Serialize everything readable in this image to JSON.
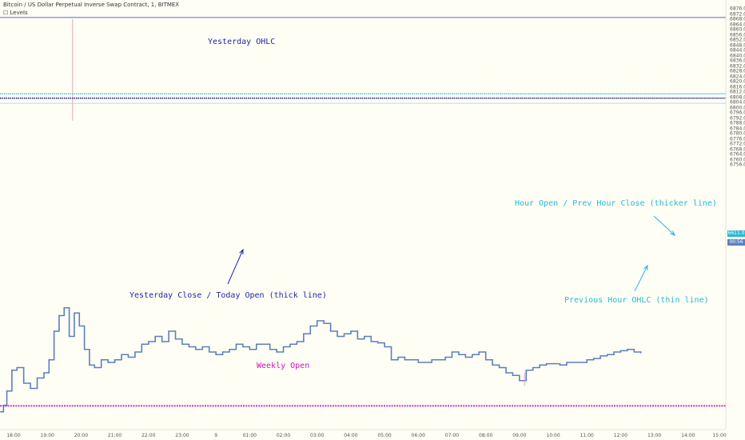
{
  "header": {
    "title": "Bitcoin / US Dollar Perpetual Inverse Swap Contract, 1, BITMEX",
    "indicator": "Levels"
  },
  "colors": {
    "background": "#fffef5",
    "candle": "#5b7fc0",
    "wick": "#d890a6",
    "yesterday_ohlc": "#3636a8",
    "today_open": "#1c1c9c",
    "hour_open": "#2cb8d0",
    "prev_hour": "#8fd6e6",
    "weekly_open": "#d400c8",
    "hour_label": "#25b8d6",
    "yesterday_label": "#2424aa",
    "weekly_label": "#d010c8"
  },
  "annotations": {
    "yesterday_ohlc": "Yesterday OHLC",
    "yesterday_close": "Yesterday Close / Today Open (thick line)",
    "hour_open": "Hour Open / Prev Hour Close (thicker line)",
    "prev_hour": "Previous Hour OHLC (thin line)",
    "weekly_open": "Weekly Open"
  },
  "price_labels": {
    "last": "6611.0",
    "timer": "00:56"
  },
  "chart_data": {
    "type": "line",
    "title": "Bitcoin / US Dollar Perpetual Inverse Swap Contract, 1, BITMEX",
    "ylim": [
      6554,
      6878
    ],
    "yticks": [
      "6876.0",
      "6872.0",
      "6868.0",
      "6864.0",
      "6860.0",
      "6856.0",
      "6852.0",
      "6848.0",
      "6844.0",
      "6840.0",
      "6836.0",
      "6832.0",
      "6828.0",
      "6824.0",
      "6820.0",
      "6816.0",
      "6812.0",
      "6808.0",
      "6804.0",
      "6800.0",
      "6796.0",
      "6792.0",
      "6788.0",
      "6784.0",
      "6780.0",
      "6776.0",
      "6772.0",
      "6768.0",
      "6764.0",
      "6760.0",
      "6756.0"
    ],
    "ytick_values": [
      6876,
      6872,
      6868,
      6864,
      6860,
      6856,
      6852,
      6848,
      6844,
      6840,
      6836,
      6832,
      6828,
      6824,
      6820,
      6816,
      6812,
      6808,
      6804,
      6800,
      6796,
      6792,
      6788,
      6784,
      6780,
      6776,
      6772,
      6768,
      6764,
      6760,
      6756
    ],
    "xlim": [
      17.6,
      15.15
    ],
    "xticks": [
      "18:00",
      "19:00",
      "20:00",
      "21:00",
      "22:00",
      "23:00",
      "9",
      "01:00",
      "02:00",
      "03:00",
      "04:00",
      "05:00",
      "06:00",
      "07:00",
      "08:00",
      "09:00",
      "10:00",
      "11:00",
      "12:00",
      "13:00",
      "14:00",
      "15:00"
    ],
    "xtick_hours": [
      18,
      19,
      20,
      21,
      22,
      23,
      24,
      25,
      26,
      27,
      28,
      29,
      30,
      31,
      32,
      33,
      34,
      35,
      36,
      37,
      38,
      39
    ],
    "levels": [
      {
        "label": "Yesterday OHLC",
        "price": 6869.3
      },
      {
        "label": "Hour Open / Prev Hour Close (thicker line)",
        "price": 6810.6
      },
      {
        "label": "Yesterday Close / Today Open (thick line)",
        "price": 6807.3
      },
      {
        "label": "Previous Hour OHLC (thin line)",
        "price": 6803.3
      },
      {
        "label": "Weekly Open",
        "price": 6570.6
      }
    ],
    "series": [
      {
        "x": [
          17.6,
          17.7,
          17.8,
          17.95,
          18.1,
          18.3,
          18.5,
          18.7,
          18.9,
          19.05,
          19.2,
          19.35,
          19.5,
          19.65,
          19.8,
          19.95,
          20.1,
          20.25,
          20.4,
          20.6,
          20.8,
          21.0,
          21.2,
          21.4,
          21.6,
          21.8,
          22.0,
          22.2,
          22.4,
          22.6,
          22.8,
          23.0,
          23.2,
          23.4,
          23.6,
          23.8,
          24.0,
          24.2,
          24.4,
          24.6,
          24.8,
          25.0,
          25.2,
          25.4,
          25.6,
          25.8,
          26.0,
          26.2,
          26.4,
          26.6,
          26.8,
          27.0,
          27.2,
          27.4,
          27.6,
          27.8,
          28.0,
          28.2,
          28.4,
          28.6,
          28.8,
          29.0,
          29.2,
          29.4,
          29.6,
          29.8,
          30.0,
          30.2,
          30.4,
          30.6,
          30.8,
          31.0,
          31.2,
          31.4,
          31.6,
          31.8,
          32.0,
          32.2,
          32.4,
          32.6,
          32.8,
          33.0,
          33.2,
          33.4,
          33.6,
          33.8,
          34.0,
          34.2,
          34.4,
          34.6,
          34.8,
          35.0,
          35.2,
          35.4,
          35.6,
          35.8,
          36.0,
          36.2,
          36.4,
          36.6
        ],
        "y": [
          6566,
          6571,
          6582,
          6598,
          6600,
          6588,
          6584,
          6592,
          6596,
          6606,
          6628,
          6640,
          6646,
          6624,
          6642,
          6632,
          6614,
          6602,
          6600,
          6606,
          6604,
          6606,
          6610,
          6608,
          6612,
          6618,
          6620,
          6624,
          6620,
          6628,
          6622,
          6618,
          6616,
          6614,
          6616,
          6612,
          6610,
          6612,
          6614,
          6618,
          6616,
          6614,
          6618,
          6618,
          6614,
          6612,
          6616,
          6618,
          6620,
          6626,
          6632,
          6636,
          6634,
          6628,
          6624,
          6626,
          6628,
          6622,
          6624,
          6620,
          6619,
          6616,
          6606,
          6608,
          6606,
          6606,
          6604,
          6604,
          6606,
          6606,
          6608,
          6612,
          6610,
          6608,
          6610,
          6612,
          6606,
          6602,
          6600,
          6596,
          6594,
          6590,
          6598,
          6600,
          6602,
          6603,
          6603,
          6602,
          6604,
          6604,
          6604,
          6606,
          6607,
          6609,
          6610,
          6612,
          6613,
          6614,
          6612,
          6611
        ]
      }
    ]
  }
}
